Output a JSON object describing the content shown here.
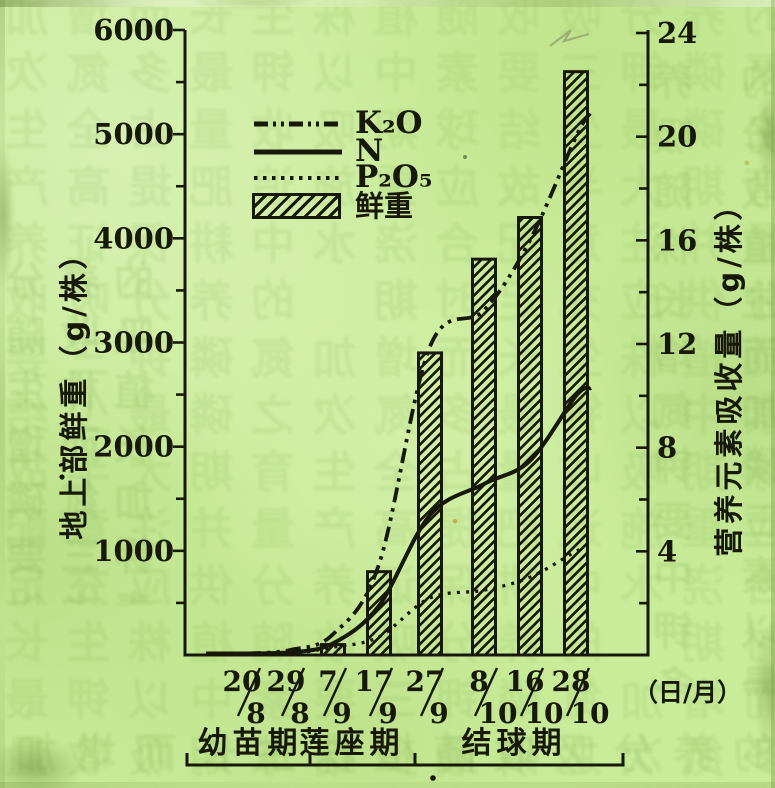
{
  "page": {
    "background_color": "#c9ec9a",
    "ink_color": "#17170a",
    "description_colors": {
      "ghost_bleedthrough": "#7fae4e"
    }
  },
  "chart_data": {
    "type": "combo-bar-line",
    "categories": [
      "20/8",
      "29/8",
      "7/9",
      "17/9",
      "27/9",
      "8/10",
      "16/10",
      "28/10"
    ],
    "series": [
      {
        "name": "K₂O",
        "kind": "line",
        "line_style": "dashdot",
        "axis": "right",
        "values": [
          0.05,
          0.2,
          0.8,
          3.5,
          11.9,
          13.3,
          16.0,
          20.0
        ]
      },
      {
        "name": "N",
        "kind": "line",
        "line_style": "solid",
        "axis": "right",
        "values": [
          0.02,
          0.1,
          0.45,
          1.9,
          5.4,
          6.6,
          7.5,
          10.0
        ]
      },
      {
        "name": "P₂O₅",
        "kind": "line",
        "line_style": "dotted",
        "axis": "right",
        "values": [
          0.02,
          0.05,
          0.3,
          0.7,
          2.2,
          2.5,
          3.0,
          4.0
        ]
      },
      {
        "name": "鲜重",
        "kind": "bar",
        "axis": "left",
        "values": [
          null,
          null,
          100,
          800,
          2900,
          3800,
          4200,
          5600
        ]
      }
    ],
    "left_axis": {
      "title": "地上部鲜重（g/株）",
      "min": 0,
      "max": 6000,
      "major_step": 1000,
      "minor_step": 500,
      "tick_labels": [
        "6000",
        "5000",
        "4000",
        "3000",
        "2000",
        "1000"
      ]
    },
    "right_axis": {
      "title": "营养元素吸收量（g/株）",
      "min": 0,
      "max": 24,
      "major_step": 4,
      "minor_step": 2,
      "tick_labels": [
        "24",
        "20",
        "16",
        "12",
        "8",
        "4"
      ]
    },
    "x_axis": {
      "unit_label": "（日/月）",
      "dates": [
        [
          "20",
          "8"
        ],
        [
          "29",
          "8"
        ],
        [
          "7",
          "9"
        ],
        [
          "17",
          "9"
        ],
        [
          "27",
          "9"
        ],
        [
          "8",
          "10"
        ],
        [
          "16",
          "10"
        ],
        [
          "28",
          "10"
        ]
      ]
    },
    "stages": [
      {
        "label": "幼苗期",
        "from_category": "20/8",
        "to_category": "29/8"
      },
      {
        "label": "莲座期",
        "from_category": "7/9",
        "to_category": "17/9"
      },
      {
        "label": "结球期",
        "from_category": "27/9",
        "to_category": "28/10"
      }
    ],
    "legend_order": [
      "K₂O",
      "N",
      "P₂O₅",
      "鲜重"
    ],
    "grid": "off",
    "legend_position": "upper-left-inside"
  },
  "texture": {
    "ghost_chars": "的养分吸收随植株生长而增加氮磷钾三要素中以钾最多氮次之磷最少结球期吸收量占全生育期大半故应重施追肥提高产量并注意配合浇水中耕保证养分供应充足时期"
  }
}
